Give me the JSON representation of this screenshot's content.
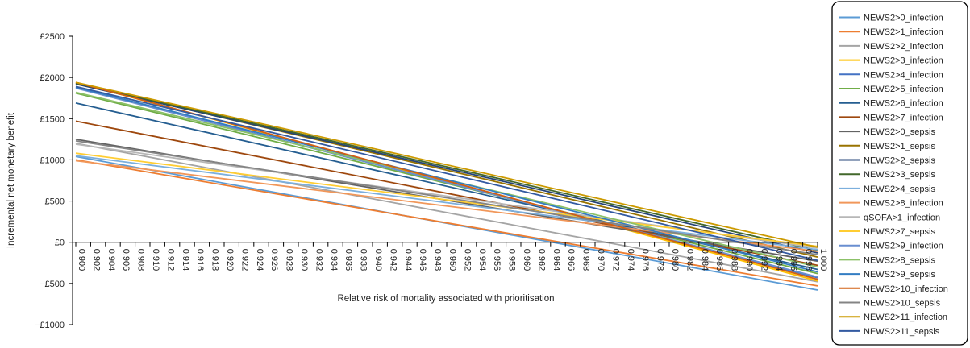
{
  "chart_data": {
    "type": "line",
    "title": "",
    "xlabel": "Relative risk of mortality associated with prioritisation",
    "ylabel": "Incremental net monetary benefit",
    "ylim": [
      -1000,
      2500
    ],
    "y_ticks": [
      2500,
      2000,
      1500,
      1000,
      500,
      0,
      -500,
      -1000
    ],
    "y_tick_labels": [
      "£2500",
      "£2000",
      "£1500",
      "£1000",
      "£500",
      "£0",
      "−£500",
      "−£1000"
    ],
    "xlim": [
      0.9,
      1.0
    ],
    "x_tick_labels": [
      "0.900",
      "0.902",
      "0.904",
      "0.906",
      "0.908",
      "0.910",
      "0.912",
      "0.914",
      "0.916",
      "0.918",
      "0.920",
      "0.922",
      "0.924",
      "0.926",
      "0.928",
      "0.930",
      "0.932",
      "0.934",
      "0.936",
      "0.938",
      "0.940",
      "0.942",
      "0.944",
      "0.946",
      "0.948",
      "0.950",
      "0.952",
      "0.954",
      "0.956",
      "0.958",
      "0.960",
      "0.962",
      "0.964",
      "0.966",
      "0.968",
      "0.970",
      "0.972",
      "0.974",
      "0.976",
      "0.978",
      "0.980",
      "0.982",
      "0.984",
      "0.986",
      "0.988",
      "0.990",
      "0.992",
      "0.994",
      "0.996",
      "0.998",
      "1.000"
    ],
    "grid": false,
    "legend_position": "right",
    "series": [
      {
        "name": "NEWS2>0_infection",
        "color": "#5B9BD5",
        "x": [
          0.9,
          1.0
        ],
        "y": [
          1040,
          -580
        ]
      },
      {
        "name": "NEWS2>1_infection",
        "color": "#ED7D31",
        "x": [
          0.9,
          1.0
        ],
        "y": [
          1000,
          -530
        ]
      },
      {
        "name": "NEWS2>2_infection",
        "color": "#A5A5A5",
        "x": [
          0.9,
          1.0
        ],
        "y": [
          1200,
          -480
        ]
      },
      {
        "name": "NEWS2>3_infection",
        "color": "#FFC000",
        "x": [
          0.9,
          1.0
        ],
        "y": [
          1940,
          -470
        ]
      },
      {
        "name": "NEWS2>4_infection",
        "color": "#4472C4",
        "x": [
          0.9,
          1.0
        ],
        "y": [
          1880,
          -430
        ]
      },
      {
        "name": "NEWS2>5_infection",
        "color": "#70AD47",
        "x": [
          0.9,
          1.0
        ],
        "y": [
          1810,
          -380
        ]
      },
      {
        "name": "NEWS2>6_infection",
        "color": "#255E91",
        "x": [
          0.9,
          1.0
        ],
        "y": [
          1690,
          -330
        ]
      },
      {
        "name": "NEWS2>7_infection",
        "color": "#9E480E",
        "x": [
          0.9,
          1.0
        ],
        "y": [
          1470,
          -280
        ]
      },
      {
        "name": "NEWS2>0_sepsis",
        "color": "#636363",
        "x": [
          0.9,
          1.0
        ],
        "y": [
          1250,
          -230
        ]
      },
      {
        "name": "NEWS2>1_sepsis",
        "color": "#997300",
        "x": [
          0.9,
          1.0
        ],
        "y": [
          1930,
          -180
        ]
      },
      {
        "name": "NEWS2>2_sepsis",
        "color": "#264478",
        "x": [
          0.9,
          1.0
        ],
        "y": [
          1920,
          -130
        ]
      },
      {
        "name": "NEWS2>3_sepsis",
        "color": "#43682B",
        "x": [
          0.9,
          1.0
        ],
        "y": [
          1930,
          -100
        ]
      },
      {
        "name": "NEWS2>4_sepsis",
        "color": "#7CAFDD",
        "x": [
          0.9,
          1.0
        ],
        "y": [
          1050,
          -90
        ]
      },
      {
        "name": "NEWS2>8_infection",
        "color": "#F1975A",
        "x": [
          0.9,
          1.0
        ],
        "y": [
          990,
          -110
        ]
      },
      {
        "name": "qSOFA>1_infection",
        "color": "#B7B7B7",
        "x": [
          0.9,
          1.0
        ],
        "y": [
          1190,
          -70
        ]
      },
      {
        "name": "NEWS2>7_sepsis",
        "color": "#FFCD33",
        "x": [
          0.9,
          1.0
        ],
        "y": [
          1080,
          -50
        ]
      },
      {
        "name": "NEWS2>9_infection",
        "color": "#698ED0",
        "x": [
          0.9,
          1.0
        ],
        "y": [
          1870,
          -420
        ]
      },
      {
        "name": "NEWS2>8_sepsis",
        "color": "#8CC168",
        "x": [
          0.9,
          1.0
        ],
        "y": [
          1820,
          -300
        ]
      },
      {
        "name": "NEWS2>9_sepsis",
        "color": "#327DC2",
        "x": [
          0.9,
          1.0
        ],
        "y": [
          1880,
          -360
        ]
      },
      {
        "name": "NEWS2>10_infection",
        "color": "#D26012",
        "x": [
          0.9,
          1.0
        ],
        "y": [
          1940,
          -450
        ]
      },
      {
        "name": "NEWS2>10_sepsis",
        "color": "#848484",
        "x": [
          0.9,
          1.0
        ],
        "y": [
          1230,
          -150
        ]
      },
      {
        "name": "NEWS2>11_infection",
        "color": "#CC9A00",
        "x": [
          0.9,
          1.0
        ],
        "y": [
          1940,
          -60
        ]
      },
      {
        "name": "NEWS2>11_sepsis",
        "color": "#335AA1",
        "x": [
          0.9,
          1.0
        ],
        "y": [
          1890,
          -220
        ]
      }
    ]
  }
}
